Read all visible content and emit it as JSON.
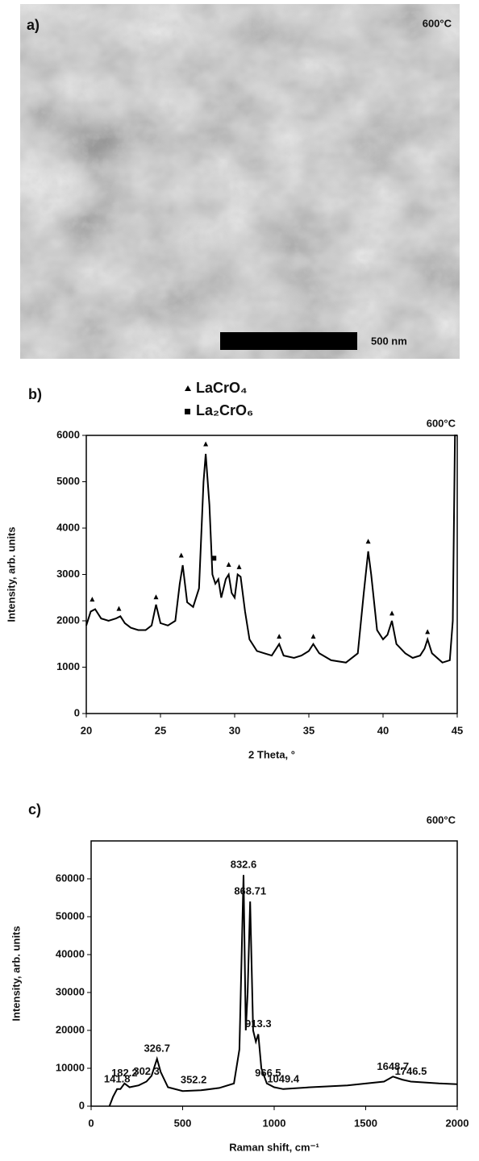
{
  "image_panel": {
    "label": "a)",
    "temperature": "600°C",
    "scale_bar": "500 nm"
  },
  "chart_data": [
    {
      "type": "line",
      "label": "b)",
      "title": "600°C",
      "x_label": "2 Theta, °",
      "y_label": "Intensity, arb. units",
      "color": "#000000",
      "xlim": [
        20,
        45
      ],
      "xticks": [
        20,
        25,
        30,
        35,
        40,
        45
      ],
      "ylim": [
        0,
        6000
      ],
      "yticks": [
        0,
        1000,
        2000,
        3000,
        4000,
        5000,
        6000
      ],
      "x": [
        20,
        20.3,
        20.6,
        21,
        21.5,
        22,
        22.3,
        22.6,
        23,
        23.5,
        24,
        24.4,
        24.7,
        25,
        25.5,
        26,
        26.3,
        26.5,
        26.8,
        27.2,
        27.6,
        27.9,
        28.05,
        28.3,
        28.5,
        28.7,
        28.9,
        29.1,
        29.4,
        29.6,
        29.8,
        30,
        30.2,
        30.4,
        30.7,
        31,
        31.5,
        32,
        32.5,
        33,
        33.3,
        34,
        34.5,
        35,
        35.3,
        35.7,
        36.5,
        37.5,
        38.3,
        38.7,
        39,
        39.2,
        39.6,
        40,
        40.3,
        40.6,
        40.9,
        41.5,
        42,
        42.5,
        42.8,
        43,
        43.3,
        44,
        44.5,
        44.7,
        44.85,
        45
      ],
      "values": [
        1900,
        2200,
        2250,
        2050,
        2000,
        2050,
        2100,
        1950,
        1850,
        1800,
        1800,
        1900,
        2350,
        1950,
        1900,
        2000,
        2800,
        3200,
        2400,
        2300,
        2700,
        5000,
        5600,
        4500,
        3000,
        2800,
        2900,
        2500,
        2900,
        3000,
        2600,
        2500,
        3000,
        2950,
        2200,
        1600,
        1350,
        1300,
        1250,
        1500,
        1250,
        1200,
        1250,
        1350,
        1500,
        1300,
        1150,
        1100,
        1300,
        2600,
        3500,
        3000,
        1800,
        1600,
        1700,
        2000,
        1500,
        1300,
        1200,
        1250,
        1400,
        1600,
        1300,
        1100,
        1150,
        2000,
        6000,
        6000
      ],
      "markers": [
        {
          "name": "LaCrO₄",
          "shape": "triangle",
          "x": [
            20.4,
            22.2,
            24.7,
            26.4,
            28.05,
            29.6,
            30.3,
            33,
            35.3,
            39,
            40.6,
            43
          ],
          "y": [
            2450,
            2250,
            2500,
            3400,
            5800,
            3200,
            3150,
            1650,
            1650,
            3700,
            2150,
            1750
          ]
        },
        {
          "name": "La₂CrO₆",
          "shape": "square",
          "x": [
            28.6
          ],
          "y": [
            3350
          ]
        }
      ]
    },
    {
      "type": "line",
      "label": "c)",
      "title": "600°C",
      "x_label": "Raman shift, cm⁻¹",
      "y_label": "Intensity, arb. units",
      "color": "#000000",
      "xlim": [
        0,
        2000
      ],
      "xticks": [
        0,
        500,
        1000,
        1500,
        {
          "value": 2000,
          "label": "2000"
        }
      ],
      "ylim": [
        0,
        70000
      ],
      "yticks": [
        0,
        10000,
        20000,
        30000,
        40000,
        50000,
        60000
      ],
      "x": [
        100,
        120,
        141.8,
        160,
        182.2,
        210,
        260,
        302.3,
        330,
        360,
        380,
        420,
        500,
        600,
        700,
        780,
        810,
        832.6,
        845,
        855,
        868.71,
        885,
        900,
        913.3,
        930,
        960,
        1000,
        1049.4,
        1200,
        1400,
        1600,
        1648.7,
        1700,
        1746.5,
        1900,
        2000
      ],
      "values": [
        0,
        2500,
        4500,
        4500,
        6000,
        5000,
        5500,
        6500,
        8000,
        12500,
        9000,
        5000,
        4000,
        4200,
        4800,
        6000,
        15000,
        61000,
        20000,
        30000,
        54000,
        20000,
        17000,
        19000,
        10000,
        6000,
        5000,
        4500,
        5000,
        5500,
        6500,
        7800,
        7000,
        6500,
        6000,
        5800
      ],
      "annotations": [
        {
          "text": "141.8",
          "x": 141.8,
          "y": 4500
        },
        {
          "text": "182.2",
          "x": 182.2,
          "y": 6000
        },
        {
          "text": "326.7",
          "x": 360,
          "y": 12500
        },
        {
          "text": "302.3",
          "x": 302.3,
          "y": 6500
        },
        {
          "text": "352.2",
          "x": 560,
          "y": 4200
        },
        {
          "text": "832.6",
          "x": 832.6,
          "y": 61000
        },
        {
          "text": "868.71",
          "x": 868.71,
          "y": 54000
        },
        {
          "text": "913.3",
          "x": 913.3,
          "y": 19000
        },
        {
          "text": "966.5",
          "x": 966.5,
          "y": 6000
        },
        {
          "text": "1049.4",
          "x": 1049.4,
          "y": 4500
        },
        {
          "text": "1648.7",
          "x": 1648.7,
          "y": 7800
        },
        {
          "text": "1746.5",
          "x": 1746.5,
          "y": 6500
        }
      ]
    }
  ]
}
